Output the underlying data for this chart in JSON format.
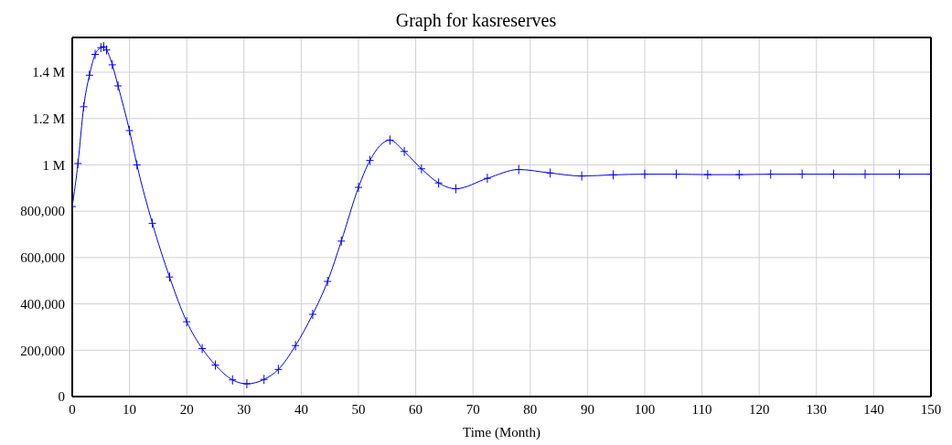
{
  "chart_data": {
    "type": "line",
    "title": "Graph for kasreserves",
    "xlabel": "Time (Month)",
    "x": [
      0,
      1,
      2,
      3,
      4,
      5,
      5.5,
      6,
      7,
      8,
      10,
      11.3,
      14,
      17,
      20,
      22.7,
      25,
      28,
      30.5,
      33.5,
      36,
      39,
      42,
      44.6,
      47,
      50,
      52,
      55.5,
      58,
      61,
      64,
      67,
      72.5,
      78,
      83.5,
      89,
      94.5,
      100,
      105.5,
      111,
      116.5,
      122,
      127.5,
      133,
      138.5,
      144.5,
      150
    ],
    "series": [
      {
        "color": "#0000ff",
        "values": [
          820000,
          1006000,
          1251000,
          1387000,
          1477000,
          1506000,
          1510000,
          1496000,
          1432000,
          1341000,
          1148000,
          1000000,
          748000,
          516000,
          323000,
          207000,
          136000,
          72000,
          55000,
          74000,
          117000,
          220000,
          355000,
          497000,
          671000,
          903000,
          1019000,
          1107000,
          1058000,
          983000,
          922000,
          897000,
          942000,
          980000,
          965000,
          952000,
          957000,
          960000,
          960000,
          958000,
          958000,
          960000,
          960000,
          960000,
          960000,
          960000,
          960000
        ]
      }
    ],
    "xlim": [
      0,
      150
    ],
    "xticks": [
      0,
      10,
      20,
      30,
      40,
      50,
      60,
      70,
      80,
      90,
      100,
      110,
      120,
      130,
      140,
      150
    ],
    "ylim": [
      0,
      1550000
    ],
    "yticks": [
      0,
      {
        "value": 200000,
        "label": "200,000"
      },
      {
        "value": 400000,
        "label": "400,000"
      },
      {
        "value": 600000,
        "label": "600,000"
      },
      {
        "value": 800000,
        "label": "800,000"
      },
      {
        "value": 1000000,
        "label": "1 M"
      },
      {
        "value": 1200000,
        "label": "1.2 M"
      },
      {
        "value": 1400000,
        "label": "1.4 M"
      }
    ],
    "grid": true,
    "marker": "cross",
    "line_style": "solid"
  }
}
